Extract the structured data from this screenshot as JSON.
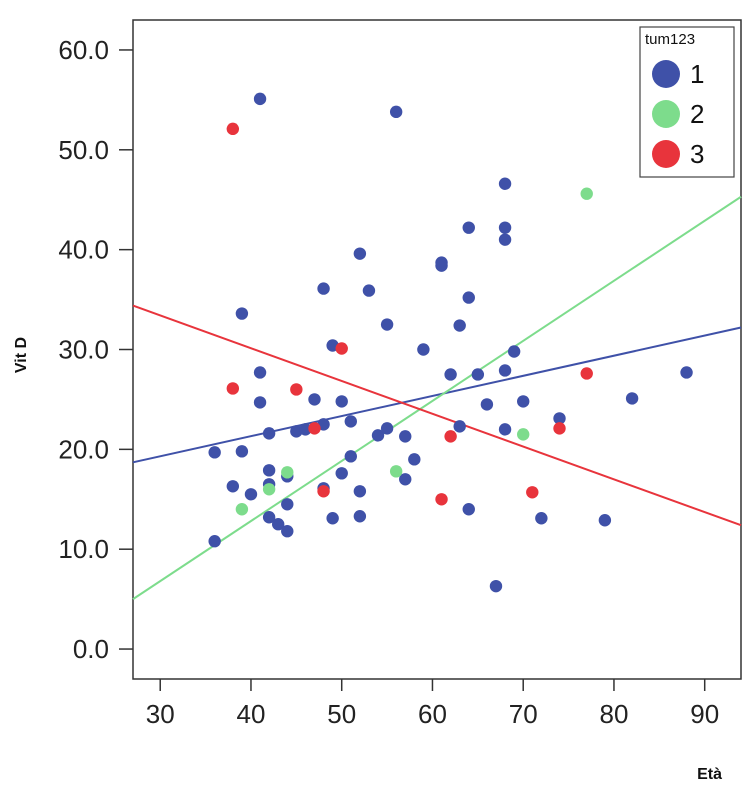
{
  "chart_data": {
    "type": "scatter",
    "xlabel": "Età",
    "ylabel": "Vit D",
    "xlim": [
      27,
      94
    ],
    "ylim": [
      -3,
      63
    ],
    "x_ticks": [
      "30",
      "40",
      "50",
      "60",
      "70",
      "80",
      "90"
    ],
    "y_ticks": [
      "0.0",
      "10.0",
      "20.0",
      "30.0",
      "40.0",
      "50.0",
      "60.0"
    ],
    "grid": false,
    "legend": {
      "title": "tum123",
      "placement": "top-right"
    },
    "series": [
      {
        "name": "1",
        "color": "#3f51a8",
        "points": [
          [
            36,
            19.7
          ],
          [
            36,
            10.8
          ],
          [
            38,
            16.3
          ],
          [
            39,
            19.8
          ],
          [
            39,
            33.6
          ],
          [
            40,
            15.5
          ],
          [
            41,
            24.7
          ],
          [
            41,
            27.7
          ],
          [
            41,
            55.1
          ],
          [
            42,
            21.6
          ],
          [
            42,
            17.9
          ],
          [
            42,
            16.5
          ],
          [
            42,
            13.2
          ],
          [
            43,
            12.5
          ],
          [
            44,
            11.8
          ],
          [
            44,
            14.5
          ],
          [
            44,
            17.3
          ],
          [
            45,
            21.8
          ],
          [
            46,
            22.0
          ],
          [
            47,
            25.0
          ],
          [
            48,
            36.1
          ],
          [
            48,
            22.5
          ],
          [
            48,
            16.1
          ],
          [
            49,
            30.4
          ],
          [
            49,
            13.1
          ],
          [
            50,
            24.8
          ],
          [
            50,
            17.6
          ],
          [
            51,
            22.8
          ],
          [
            51,
            19.3
          ],
          [
            52,
            39.6
          ],
          [
            52,
            15.8
          ],
          [
            52,
            13.3
          ],
          [
            53,
            35.9
          ],
          [
            54,
            21.4
          ],
          [
            55,
            32.5
          ],
          [
            55,
            22.1
          ],
          [
            56,
            53.8
          ],
          [
            57,
            21.3
          ],
          [
            57,
            17.0
          ],
          [
            58,
            19.0
          ],
          [
            59,
            30.0
          ],
          [
            61,
            38.7
          ],
          [
            61,
            38.4
          ],
          [
            62,
            27.5
          ],
          [
            63,
            32.4
          ],
          [
            63,
            22.3
          ],
          [
            64,
            42.2
          ],
          [
            64,
            35.2
          ],
          [
            64,
            14.0
          ],
          [
            65,
            27.5
          ],
          [
            66,
            24.5
          ],
          [
            67,
            6.3
          ],
          [
            68,
            46.6
          ],
          [
            68,
            42.2
          ],
          [
            68,
            41.0
          ],
          [
            68,
            27.9
          ],
          [
            68,
            22.0
          ],
          [
            69,
            29.8
          ],
          [
            70,
            24.8
          ],
          [
            72,
            13.1
          ],
          [
            74,
            23.1
          ],
          [
            79,
            12.9
          ],
          [
            82,
            25.1
          ],
          [
            88,
            27.7
          ]
        ],
        "fit": {
          "x": [
            27,
            94
          ],
          "y": [
            18.7,
            32.2
          ]
        }
      },
      {
        "name": "2",
        "color": "#7ddc8c",
        "points": [
          [
            39,
            14.0
          ],
          [
            42,
            16.0
          ],
          [
            44,
            17.7
          ],
          [
            56,
            17.8
          ],
          [
            70,
            21.5
          ],
          [
            77,
            45.6
          ]
        ],
        "fit": {
          "x": [
            27,
            94
          ],
          "y": [
            5.0,
            45.3
          ]
        }
      },
      {
        "name": "3",
        "color": "#e8343c",
        "points": [
          [
            38,
            52.1
          ],
          [
            38,
            26.1
          ],
          [
            45,
            26.0
          ],
          [
            47,
            22.1
          ],
          [
            48,
            15.8
          ],
          [
            50,
            30.1
          ],
          [
            61,
            15.0
          ],
          [
            62,
            21.3
          ],
          [
            71,
            15.7
          ],
          [
            74,
            22.1
          ],
          [
            77,
            27.6
          ]
        ],
        "fit": {
          "x": [
            27,
            94
          ],
          "y": [
            34.4,
            12.4
          ]
        }
      }
    ]
  }
}
